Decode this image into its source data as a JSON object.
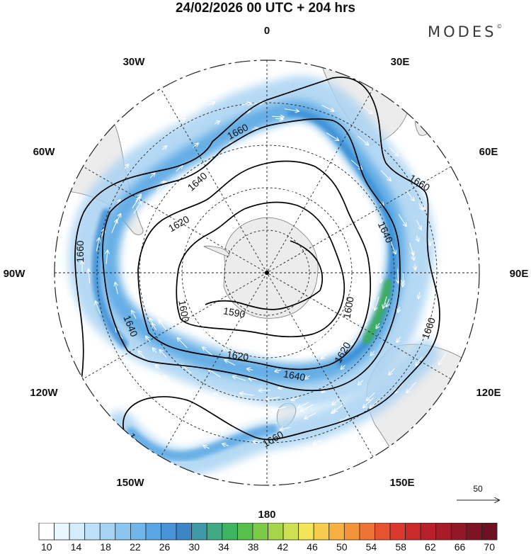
{
  "header": {
    "title": "24/02/2026  00 UTC  + 204 hrs",
    "brand": "MODES",
    "brand_mark": "©"
  },
  "map": {
    "projection": "south-polar-stereographic",
    "longitude_labels": {
      "lon_0": "0",
      "lon_30e": "30E",
      "lon_60e": "60E",
      "lon_90e": "90E",
      "lon_120e": "120E",
      "lon_150e": "150E",
      "lon_180": "180",
      "lon_150w": "150W",
      "lon_120w": "120W",
      "lon_90w": "90W",
      "lon_60w": "60W",
      "lon_30w": "30W"
    },
    "contour_labels": {
      "c1660_a": "1660",
      "c1660_b": "1660",
      "c1660_c": "1660",
      "c1660_d": "1660",
      "c1660_e": "1660",
      "c1660_f": "1660",
      "c1640_a": "1640",
      "c1640_b": "1640",
      "c1640_c": "1640",
      "c1640_d": "1640",
      "c1620_a": "1620",
      "c1620_b": "1620",
      "c1620_c": "1620",
      "c1600_a": "1600",
      "c1600_b": "1600",
      "c1590": "1590"
    },
    "reference_vector_label": "50",
    "colors": {
      "land": "#ececec",
      "coast": "#7a7a7a",
      "jet_light": "#a9d3f2",
      "jet_mid": "#5ca9e4",
      "jet_strong": "#3b8fd6",
      "jet_max": "#3cae58"
    }
  },
  "colorbar": {
    "levels": [
      "10",
      "12",
      "14",
      "16",
      "18",
      "20",
      "22",
      "24",
      "26",
      "28",
      "30",
      "32",
      "34",
      "36",
      "38",
      "40",
      "42",
      "44",
      "46",
      "48",
      "50",
      "52",
      "54",
      "56",
      "58",
      "60",
      "62",
      "64",
      "66",
      "68",
      "70"
    ],
    "labels": [
      "10",
      "14",
      "18",
      "22",
      "26",
      "30",
      "34",
      "38",
      "42",
      "46",
      "50",
      "54",
      "58",
      "62",
      "66",
      "70"
    ],
    "colors": [
      "#ffffff",
      "#eaf6fd",
      "#d4ecfb",
      "#bde1f8",
      "#a4d3f4",
      "#8bc6f0",
      "#70b6ea",
      "#5aa6e2",
      "#4794d7",
      "#3f84c4",
      "#3f9aa8",
      "#3faa84",
      "#3eb562",
      "#57c04c",
      "#7ccb46",
      "#a5d54a",
      "#cfe052",
      "#f2e55a",
      "#f7cc4c",
      "#f6b142",
      "#f3943a",
      "#ee7435",
      "#e65331",
      "#da3a2e",
      "#cb2a2b",
      "#b9202a",
      "#a61c28",
      "#931826",
      "#7d1424",
      "#6c1222"
    ]
  }
}
